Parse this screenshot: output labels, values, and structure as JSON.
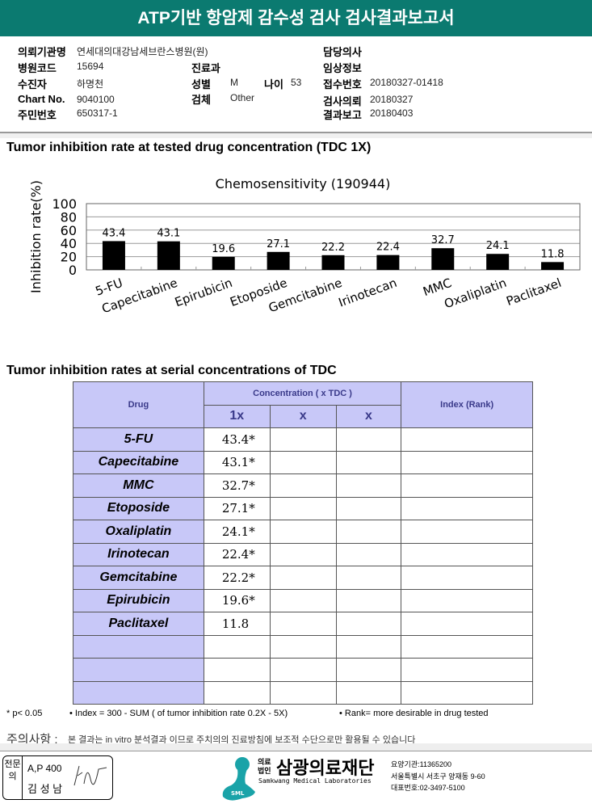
{
  "title": "ATP기반 항암제 감수성 검사 검사결과보고서",
  "info": {
    "institution_label": "의뢰기관명",
    "institution": "연세대의대강남세브란스병원(원)",
    "doctor_label": "담당의사",
    "hospital_code_label": "병원코드",
    "hospital_code": "15694",
    "dept_label": "진료과",
    "clinical_label": "임상정보",
    "patient_label": "수진자",
    "patient": "하명천",
    "sex_label": "성별",
    "sex": "M",
    "age_label": "나이",
    "age": "53",
    "receipt_label": "접수번호",
    "receipt": "20180327-01418",
    "chart_label": "Chart No.",
    "chart": "9040100",
    "specimen_label": "검체",
    "specimen": "Other",
    "request_label": "검사의뢰",
    "request": "20180327",
    "id_label": "주민번호",
    "id": "650317-1",
    "report_label": "결과보고",
    "report": "20180403"
  },
  "section1_title": "Tumor inhibition rate at tested drug concentration (TDC 1X)",
  "chart_data": {
    "type": "bar",
    "title": "Chemosensitivity (190944)",
    "ylabel": "Inhibition rate(%)",
    "xlabel": "",
    "ylim": [
      0,
      100
    ],
    "yticks": [
      "0",
      "20",
      "40",
      "60",
      "80",
      "100"
    ],
    "grid": true,
    "bar_color": "#000000",
    "categories": [
      "5-FU",
      "Capecitabine",
      "Epirubicin",
      "Etoposide",
      "Gemcitabine",
      "Irinotecan",
      "MMC",
      "Oxaliplatin",
      "Paclitaxel"
    ],
    "values": [
      43.4,
      43.1,
      19.6,
      27.1,
      22.2,
      22.4,
      32.7,
      24.1,
      11.8
    ],
    "labels": [
      "43.4",
      "43.1",
      "19.6",
      "27.1",
      "22.2",
      "22.4",
      "32.7",
      "24.1",
      "11.8"
    ]
  },
  "section2_title": "Tumor inhibition rates at serial concentrations of TDC",
  "table": {
    "drug_header": "Drug",
    "conc_header": "Concentration ( x TDC )",
    "index_header": "Index (Rank)",
    "sub_headers": [
      "1x",
      "x",
      "x"
    ],
    "rows": [
      {
        "drug": "5-FU",
        "v1": "43.4*"
      },
      {
        "drug": "Capecitabine",
        "v1": "43.1*"
      },
      {
        "drug": "MMC",
        "v1": "32.7*"
      },
      {
        "drug": "Etoposide",
        "v1": "27.1*"
      },
      {
        "drug": "Oxaliplatin",
        "v1": "24.1*"
      },
      {
        "drug": "Irinotecan",
        "v1": "22.4*"
      },
      {
        "drug": "Gemcitabine",
        "v1": "22.2*"
      },
      {
        "drug": "Epirubicin",
        "v1": "19.6*"
      },
      {
        "drug": "Paclitaxel",
        "v1": "11.8"
      },
      {
        "drug": "",
        "v1": ""
      },
      {
        "drug": "",
        "v1": ""
      },
      {
        "drug": "",
        "v1": ""
      }
    ]
  },
  "notes": {
    "p": "* p< 0.05",
    "index": "• Index = 300 - SUM ( of tumor inhibition rate 0.2X  -  5X)",
    "rank": "• Rank= more desirable in drug tested",
    "caution_label": "주의사항 :",
    "caution": "본 결과는 in vitro 분석결과 이므로 주치의의 진료방침에 보조적 수단으로만 활용될 수 있습니다"
  },
  "footer": {
    "specialist_label": "전문의",
    "ap": "A,P 400",
    "name": "김 성 남",
    "org_prefix": "의료법인",
    "org": "삼광의료재단",
    "org_en": "Samkwang Medical Laboratories",
    "logo_text": "SML",
    "code": "요양기관:11365200",
    "address": "서울특별시 서초구 양재동 9-60",
    "phone": "대표번호:02-3497-5100"
  }
}
